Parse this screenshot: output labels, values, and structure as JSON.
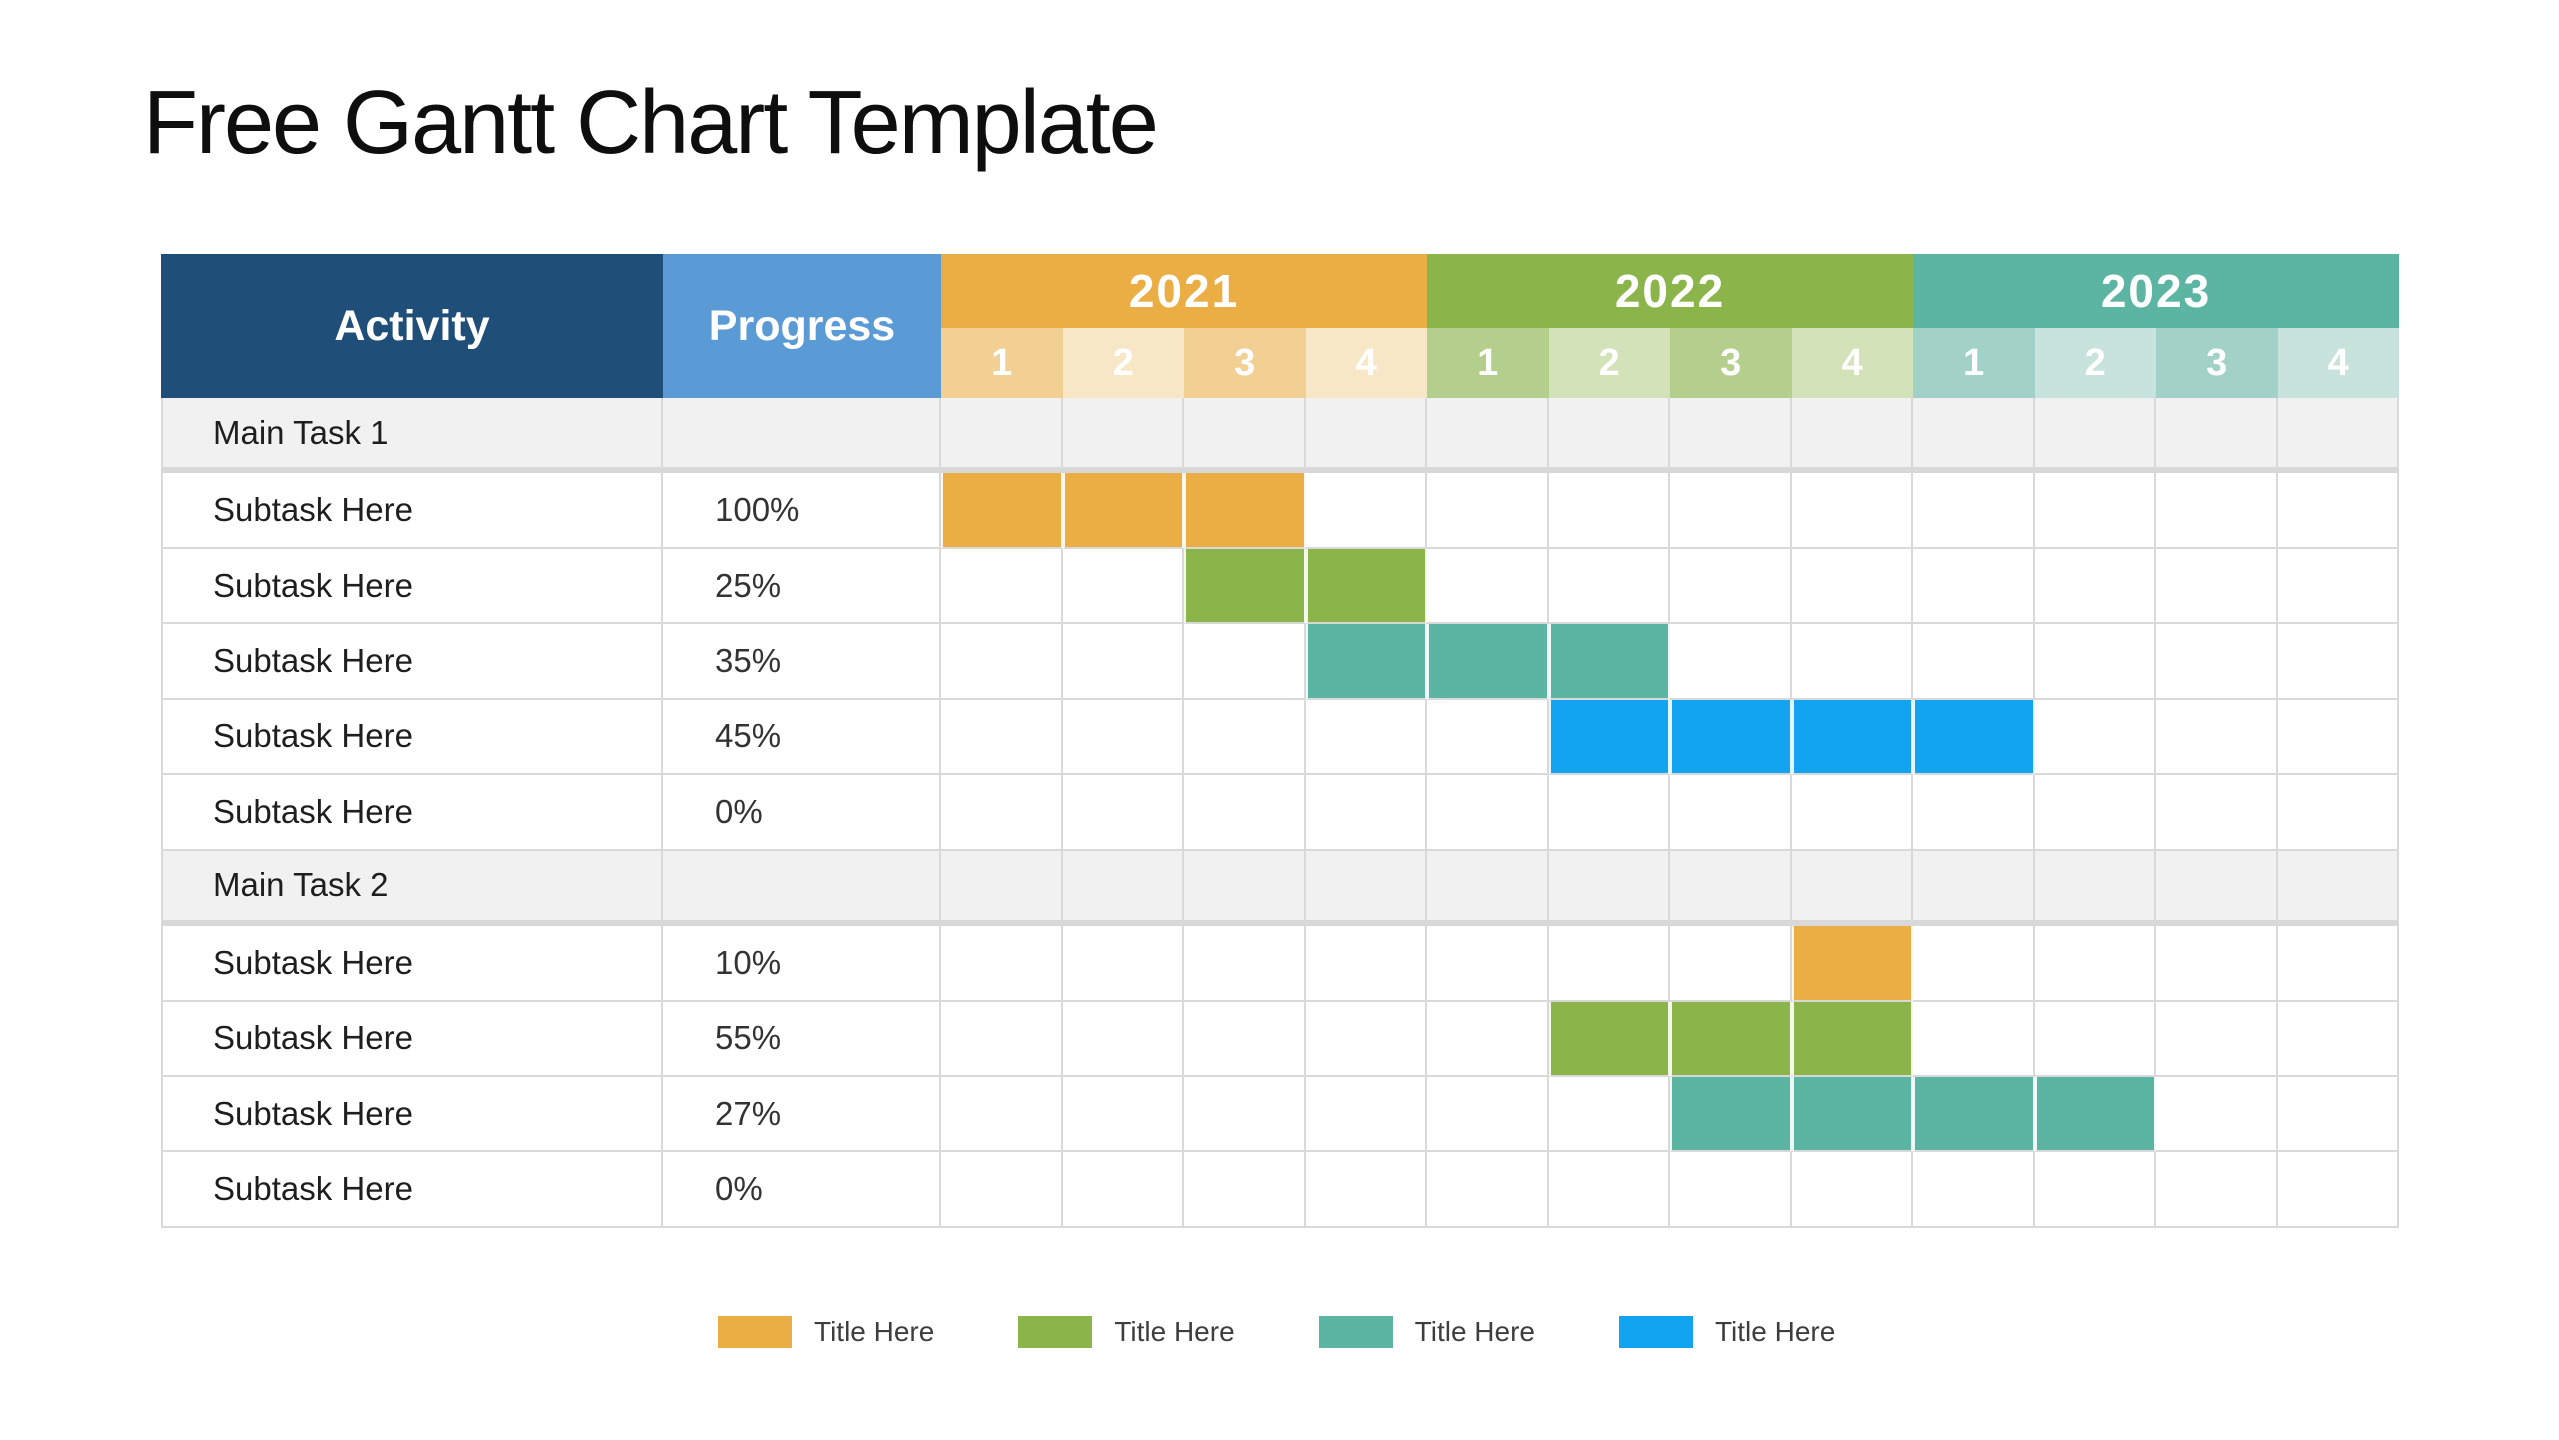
{
  "slide": {
    "title": "Free Gantt Chart Template",
    "background": "#FFFFFF"
  },
  "colors": {
    "activity_header_bg": "#1F4E79",
    "progress_header_bg": "#5B9BD5",
    "orange": "#EBAE45",
    "green": "#8BB54A",
    "teal": "#5CB4A2",
    "bright_blue": "#12A3F1",
    "gridline": "#D9D9D9",
    "group_row_bg": "#F1F1F1",
    "header_text": "#FFFFFF",
    "body_text": "#1E1E1E"
  },
  "table": {
    "activity_header": "Activity",
    "progress_header": "Progress",
    "years": [
      {
        "label": "2021",
        "color": "#EBAE45",
        "tint_strong": "#F2CF92",
        "tint_light": "#F8E7C7",
        "quarters": [
          "1",
          "2",
          "3",
          "4"
        ]
      },
      {
        "label": "2022",
        "color": "#8BB54A",
        "tint_strong": "#B4CE8C",
        "tint_light": "#D4E2B9",
        "quarters": [
          "1",
          "2",
          "3",
          "4"
        ]
      },
      {
        "label": "2023",
        "color": "#5CB4A2",
        "tint_strong": "#A2D1C8",
        "tint_light": "#C8E2DC",
        "quarters": [
          "1",
          "2",
          "3",
          "4"
        ]
      }
    ],
    "rows": [
      {
        "type": "group",
        "activity": "Main Task 1",
        "progress": "",
        "bar": null
      },
      {
        "type": "task",
        "activity": "Subtask Here",
        "progress": "100%",
        "bar": {
          "color": "#EBAE45",
          "start": 1,
          "span": 3
        }
      },
      {
        "type": "task",
        "activity": "Subtask Here",
        "progress": "25%",
        "bar": {
          "color": "#8BB54A",
          "start": 3,
          "span": 2
        }
      },
      {
        "type": "task",
        "activity": "Subtask Here",
        "progress": "35%",
        "bar": {
          "color": "#5CB4A2",
          "start": 4,
          "span": 3
        }
      },
      {
        "type": "task",
        "activity": "Subtask Here",
        "progress": "45%",
        "bar": {
          "color": "#12A3F1",
          "start": 6,
          "span": 4
        }
      },
      {
        "type": "task",
        "activity": "Subtask Here",
        "progress": "0%",
        "bar": null
      },
      {
        "type": "group",
        "activity": "Main Task 2",
        "progress": "",
        "bar": null
      },
      {
        "type": "task",
        "activity": "Subtask Here",
        "progress": "10%",
        "bar": {
          "color": "#EBAE45",
          "start": 8,
          "span": 1
        }
      },
      {
        "type": "task",
        "activity": "Subtask Here",
        "progress": "55%",
        "bar": {
          "color": "#8BB54A",
          "start": 6,
          "span": 3
        }
      },
      {
        "type": "task",
        "activity": "Subtask Here",
        "progress": "27%",
        "bar": {
          "color": "#5CB4A2",
          "start": 7,
          "span": 4
        }
      },
      {
        "type": "task",
        "activity": "Subtask Here",
        "progress": "0%",
        "bar": null
      }
    ]
  },
  "legend": {
    "items": [
      {
        "label": "Title Here",
        "color": "#EBAE45"
      },
      {
        "label": "Title Here",
        "color": "#8BB54A"
      },
      {
        "label": "Title Here",
        "color": "#5CB4A2"
      },
      {
        "label": "Title Here",
        "color": "#12A3F1"
      }
    ]
  },
  "chart_data": {
    "type": "gantt",
    "title": "Free Gantt Chart Template",
    "time_axis": {
      "years": [
        "2021",
        "2022",
        "2023"
      ],
      "quarters_per_year": [
        "1",
        "2",
        "3",
        "4"
      ]
    },
    "columns": [
      "Activity",
      "Progress"
    ],
    "tasks": [
      {
        "activity": "Main Task 1",
        "group": true,
        "progress": null,
        "start": null,
        "end": null
      },
      {
        "activity": "Subtask Here",
        "group": false,
        "progress": 100,
        "start": "2021 Q1",
        "end": "2021 Q3",
        "color": "#EBAE45"
      },
      {
        "activity": "Subtask Here",
        "group": false,
        "progress": 25,
        "start": "2021 Q3",
        "end": "2021 Q4",
        "color": "#8BB54A"
      },
      {
        "activity": "Subtask Here",
        "group": false,
        "progress": 35,
        "start": "2021 Q4",
        "end": "2022 Q2",
        "color": "#5CB4A2"
      },
      {
        "activity": "Subtask Here",
        "group": false,
        "progress": 45,
        "start": "2022 Q2",
        "end": "2023 Q1",
        "color": "#12A3F1"
      },
      {
        "activity": "Subtask Here",
        "group": false,
        "progress": 0,
        "start": null,
        "end": null
      },
      {
        "activity": "Main Task 2",
        "group": true,
        "progress": null,
        "start": null,
        "end": null
      },
      {
        "activity": "Subtask Here",
        "group": false,
        "progress": 10,
        "start": "2022 Q4",
        "end": "2022 Q4",
        "color": "#EBAE45"
      },
      {
        "activity": "Subtask Here",
        "group": false,
        "progress": 55,
        "start": "2022 Q2",
        "end": "2022 Q4",
        "color": "#8BB54A"
      },
      {
        "activity": "Subtask Here",
        "group": false,
        "progress": 27,
        "start": "2022 Q3",
        "end": "2023 Q2",
        "color": "#5CB4A2"
      },
      {
        "activity": "Subtask Here",
        "group": false,
        "progress": 0,
        "start": null,
        "end": null
      }
    ],
    "legend_entries": [
      "Title Here",
      "Title Here",
      "Title Here",
      "Title Here"
    ],
    "grid": true,
    "legend_position": "bottom"
  }
}
